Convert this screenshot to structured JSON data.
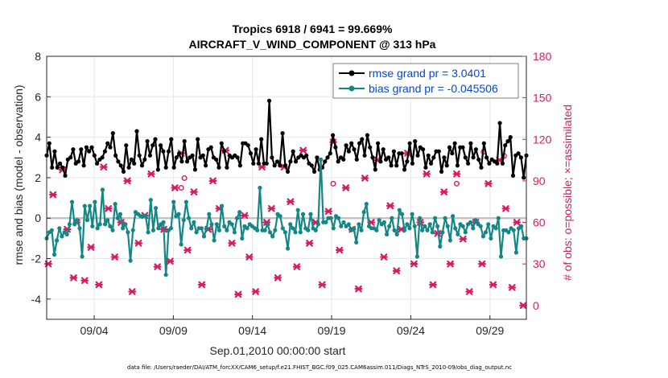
{
  "chart_data": {
    "type": "line",
    "title": "Tropics 6918 / 6941 = 99.669%",
    "subtitle": "AIRCRAFT_V_WIND_COMPONENT @ 313 hPa",
    "xlabel": "Sep.01,2010 00:00:00 start",
    "ylabel": "rmse and bias (model - observation)",
    "ylabel_right": "# of obs: o=possible; ×=assimilated",
    "footer": "data file: /Users/raeder/DAI/ATM_forcXX/CAM6_setup/f.e21.FHIST_BGC.f09_025.CAM6assim.011/Diags_NTrS_2010-09/obs_diag_output.nc",
    "xlim": [
      1,
      31.3
    ],
    "ylim": [
      -5,
      8
    ],
    "ylim_right": [
      -10,
      180
    ],
    "yticks": [
      8,
      6,
      4,
      2,
      0,
      -2,
      -4
    ],
    "yticks_right": [
      180,
      150,
      120,
      90,
      60,
      30,
      0
    ],
    "xticks": [
      {
        "day": 4,
        "label": "09/04"
      },
      {
        "day": 9,
        "label": "09/09"
      },
      {
        "day": 14,
        "label": "09/14"
      },
      {
        "day": 19,
        "label": "09/19"
      },
      {
        "day": 24,
        "label": "09/24"
      },
      {
        "day": 29,
        "label": "09/29"
      }
    ],
    "grid": true,
    "legend_position": "top-right",
    "series": [
      {
        "name": "rmse grand pr = 3.0401",
        "axis": "left",
        "color": "#000000",
        "marker": "dot",
        "values": [
          3.1,
          3.7,
          2.5,
          3.3,
          2.5,
          2.7,
          2.5,
          2.1,
          2.9,
          3.0,
          3.4,
          2.7,
          2.8,
          3.4,
          2.6,
          3.5,
          3.3,
          3.5,
          3.1,
          2.7,
          2.9,
          3.0,
          3.3,
          3.7,
          3.5,
          4.2,
          3.1,
          2.8,
          2.6,
          2.3,
          3.6,
          2.5,
          2.9,
          2.7,
          4.3,
          3.1,
          2.6,
          2.9,
          3.8,
          3.1,
          3.6,
          3.9,
          2.4,
          3.6,
          3.3,
          2.5,
          3.3,
          3.9,
          2.5,
          3.0,
          3.2,
          2.8,
          3.8,
          2.8,
          3.0,
          3.1,
          2.4,
          3.9,
          3.0,
          3.1,
          2.6,
          3.4,
          3.5,
          3.0,
          2.9,
          2.5,
          3.7,
          3.3,
          2.5,
          3.1,
          3.0,
          3.1,
          3.0,
          2.6,
          3.7,
          3.7,
          3.6,
          3.2,
          2.7,
          3.4,
          2.7,
          3.9,
          2.7,
          2.7,
          5.8,
          3.0,
          2.6,
          2.8,
          2.6,
          4.2,
          2.6,
          2.3,
          2.8,
          3.3,
          2.8,
          3.0,
          3.1,
          3.0,
          3.1,
          2.7,
          2.6,
          2.3,
          3.0,
          2.4,
          2.5,
          2.8,
          3.0,
          3.2,
          4.1,
          3.5,
          2.8,
          3.0,
          2.9,
          3.6,
          3.3,
          3.7,
          3.4,
          2.9,
          3.7,
          3.9,
          3.1,
          4.1,
          3.5,
          3.0,
          2.4,
          3.7,
          2.8,
          3.4,
          2.9,
          3.0,
          2.6,
          3.3,
          2.6,
          3.2,
          3.2,
          2.4,
          2.8,
          3.7,
          2.7,
          3.8,
          3.1,
          3.5,
          3.4,
          2.5,
          3.1,
          2.7,
          3.0,
          3.3,
          3.3,
          2.3,
          3.0,
          2.6,
          3.5,
          3.2,
          3.7,
          2.6,
          3.5,
          3.5,
          3.0,
          2.7,
          3.7,
          3.0,
          3.4,
          2.9,
          2.5,
          3.7,
          3.0,
          2.7,
          2.9,
          2.8,
          2.7,
          4.7,
          2.7,
          3.6,
          3.8,
          4.0,
          2.1,
          3.1,
          3.2,
          3.0,
          2.0,
          3.1
        ]
      },
      {
        "name": "bias grand pr = -0.045506",
        "axis": "left",
        "color": "#138785",
        "marker": "dot",
        "values": [
          -1.0,
          -0.7,
          -0.6,
          -1.8,
          -1.1,
          -0.5,
          -0.9,
          -0.7,
          -0.8,
          -0.3,
          0.8,
          -0.3,
          -0.1,
          -0.5,
          -1.9,
          0.6,
          -0.1,
          0.6,
          -0.4,
          0.8,
          -0.5,
          -0.3,
          1.4,
          -0.3,
          -0.1,
          -0.4,
          -0.6,
          0.7,
          0.0,
          0.2,
          -0.5,
          -0.3,
          -0.7,
          -2.1,
          -0.6,
          0.3,
          0.2,
          0.1,
          0.1,
          0.1,
          -0.7,
          0.9,
          -0.6,
          0.5,
          -0.5,
          -0.3,
          -0.2,
          -2.8,
          -0.6,
          -0.5,
          0.8,
          0.1,
          0.2,
          -1.3,
          -0.1,
          0.8,
          0.0,
          -0.5,
          -0.2,
          -0.7,
          -0.5,
          -0.5,
          -0.9,
          -0.5,
          0.2,
          -0.3,
          -1.1,
          -0.3,
          -0.6,
          0.6,
          -0.4,
          -0.6,
          -0.2,
          -0.3,
          -0.7,
          0.0,
          0.3,
          -1.0,
          -0.4,
          -0.5,
          -0.3,
          -0.4,
          -0.5,
          -0.6,
          1.5,
          -0.6,
          -0.6,
          -0.3,
          -0.7,
          -0.9,
          -0.6,
          0.2,
          0.1,
          -0.5,
          -0.7,
          -1.5,
          -0.3,
          -0.5,
          -0.7,
          0.4,
          -0.7,
          0.2,
          -0.5,
          -0.6,
          0.2,
          -0.5,
          -0.6,
          -0.3,
          2.9,
          -0.2,
          -0.2,
          0.0,
          0.0,
          -0.5,
          0.1,
          0.0,
          -0.4,
          -0.2,
          -0.4,
          -0.3,
          -0.6,
          -0.5,
          -1.2,
          -0.3,
          -0.6,
          0.3,
          0.7,
          -0.4,
          -0.5,
          -0.5,
          -0.6,
          -0.1,
          -0.3,
          -0.2,
          -0.8,
          -0.4,
          0.0,
          -0.6,
          -0.8,
          0.4,
          0.2,
          -0.6,
          -0.3,
          -0.5,
          0.2,
          -0.4,
          -1.9,
          0.0,
          -0.6,
          -0.4,
          -0.6,
          -0.3,
          -0.7,
          0.0,
          -0.4,
          -1.4,
          -0.7,
          0.0,
          -0.4,
          -1.1,
          0.1,
          -0.5,
          -0.8,
          -0.3,
          -0.4,
          -0.7,
          -0.3,
          -0.2,
          -0.5,
          -0.1,
          -0.3,
          -0.4,
          -0.9,
          -0.7,
          -0.3,
          -1.0,
          -0.4,
          -0.5,
          0.0,
          -1.9,
          -0.6,
          -0.6,
          -0.7,
          -0.5,
          -0.6,
          -1.7,
          -0.5,
          -0.4,
          -1.0,
          -1.0
        ]
      }
    ],
    "obs_assimilated": {
      "axis": "right",
      "color": "#d81b60",
      "marker": "x",
      "points": [
        [
          1.1,
          30
        ],
        [
          1.4,
          80
        ],
        [
          2.0,
          98
        ],
        [
          2.3,
          55
        ],
        [
          2.7,
          20
        ],
        [
          2.9,
          60
        ],
        [
          3.4,
          18
        ],
        [
          3.8,
          42
        ],
        [
          4.3,
          15
        ],
        [
          4.6,
          100
        ],
        [
          4.9,
          70
        ],
        [
          5.3,
          35
        ],
        [
          5.7,
          60
        ],
        [
          6.1,
          90
        ],
        [
          6.4,
          10
        ],
        [
          6.8,
          45
        ],
        [
          7.2,
          65
        ],
        [
          7.6,
          95
        ],
        [
          8.0,
          28
        ],
        [
          8.4,
          55
        ],
        [
          8.8,
          32
        ],
        [
          9.1,
          85
        ],
        [
          9.5,
          110
        ],
        [
          9.9,
          40
        ],
        [
          10.3,
          82
        ],
        [
          10.8,
          15
        ],
        [
          11.2,
          55
        ],
        [
          11.5,
          90
        ],
        [
          11.9,
          70
        ],
        [
          12.3,
          112
        ],
        [
          12.7,
          45
        ],
        [
          13.1,
          8
        ],
        [
          13.5,
          65
        ],
        [
          13.8,
          35
        ],
        [
          14.2,
          10
        ],
        [
          14.6,
          100
        ],
        [
          14.9,
          60
        ],
        [
          15.2,
          70
        ],
        [
          15.6,
          20
        ],
        [
          16.0,
          100
        ],
        [
          16.4,
          75
        ],
        [
          16.8,
          28
        ],
        [
          17.2,
          112
        ],
        [
          17.6,
          45
        ],
        [
          18.0,
          60
        ],
        [
          18.4,
          15
        ],
        [
          18.8,
          68
        ],
        [
          19.1,
          118
        ],
        [
          19.5,
          40
        ],
        [
          19.9,
          85
        ],
        [
          20.3,
          55
        ],
        [
          20.7,
          12
        ],
        [
          21.1,
          92
        ],
        [
          21.5,
          60
        ],
        [
          21.9,
          105
        ],
        [
          22.3,
          35
        ],
        [
          22.7,
          72
        ],
        [
          23.1,
          25
        ],
        [
          23.4,
          55
        ],
        [
          23.8,
          110
        ],
        [
          24.2,
          30
        ],
        [
          24.6,
          60
        ],
        [
          25.0,
          95
        ],
        [
          25.4,
          15
        ],
        [
          25.7,
          52
        ],
        [
          26.1,
          82
        ],
        [
          26.5,
          30
        ],
        [
          26.9,
          95
        ],
        [
          27.3,
          48
        ],
        [
          27.7,
          10
        ],
        [
          28.1,
          60
        ],
        [
          28.5,
          30
        ],
        [
          28.9,
          88
        ],
        [
          29.2,
          15
        ],
        [
          29.6,
          105
        ],
        [
          30.0,
          70
        ],
        [
          30.4,
          13
        ],
        [
          30.7,
          60
        ],
        [
          31.1,
          0
        ]
      ]
    },
    "obs_possible": {
      "axis": "right",
      "color": "#d81b60",
      "marker": "o",
      "points": [
        [
          9.5,
          85
        ],
        [
          9.7,
          92
        ],
        [
          19.1,
          88
        ],
        [
          26.9,
          88
        ],
        [
          28.6,
          111
        ],
        [
          29.9,
          108
        ]
      ]
    }
  }
}
